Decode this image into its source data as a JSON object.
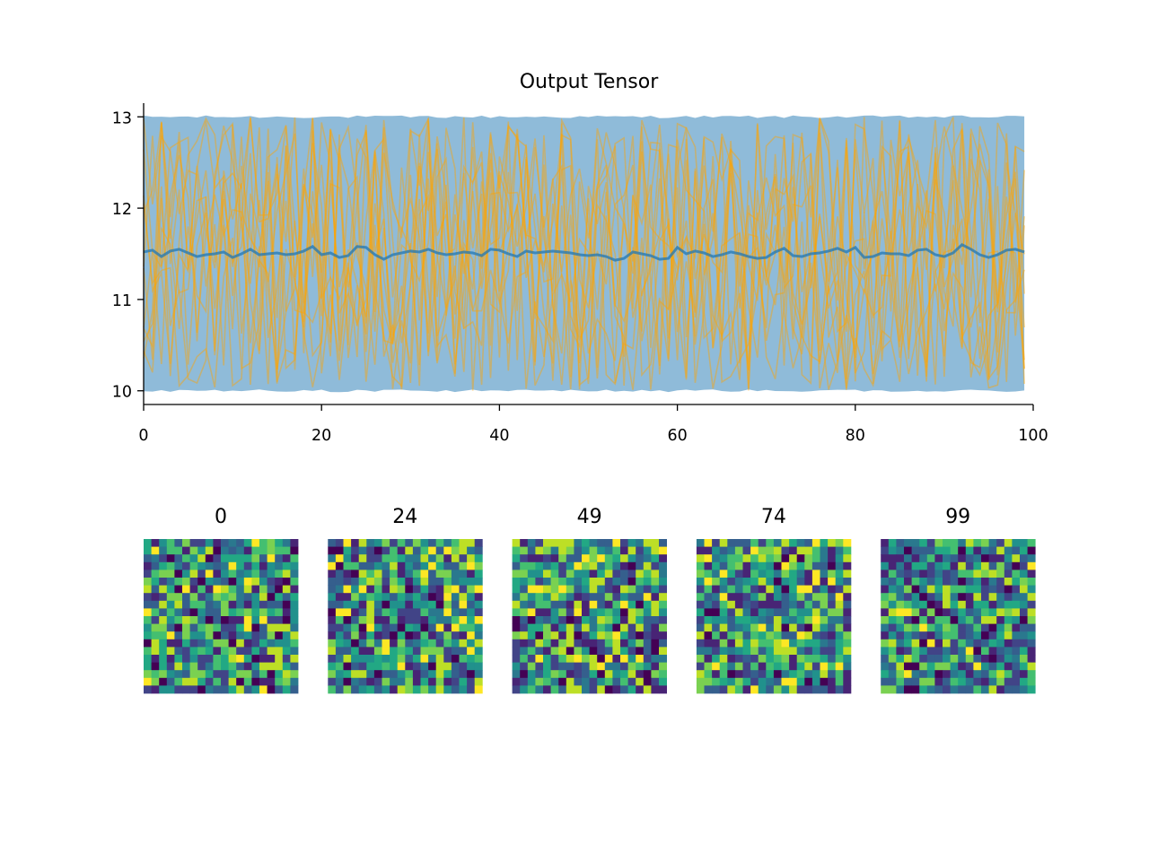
{
  "colors": {
    "band": "#1f77b4",
    "band_alpha": 0.5,
    "samples": "#ffa500",
    "mean_line": "#1f77b4",
    "cmap": "viridis"
  },
  "chart_data": [
    {
      "type": "line",
      "title": "Output Tensor",
      "xlabel": "",
      "ylabel": "",
      "xlim": [
        0,
        100
      ],
      "ylim": [
        9.85,
        13.15
      ],
      "xticks": [
        0,
        20,
        40,
        60,
        80,
        100
      ],
      "xtick_labels": [
        "0",
        "20",
        "40",
        "60",
        "80",
        "100"
      ],
      "yticks": [
        10,
        11,
        12,
        13
      ],
      "ytick_labels": [
        "10",
        "11",
        "12",
        "13"
      ],
      "grid": false,
      "spines": [
        "left",
        "bottom"
      ],
      "x_count": 100,
      "band": {
        "lower": 10.0,
        "upper": 13.0
      },
      "mean_series": [
        11.52,
        11.54,
        11.47,
        11.53,
        11.55,
        11.51,
        11.47,
        11.49,
        11.5,
        11.52,
        11.46,
        11.5,
        11.55,
        11.49,
        11.5,
        11.51,
        11.49,
        11.5,
        11.53,
        11.58,
        11.49,
        11.51,
        11.46,
        11.48,
        11.58,
        11.57,
        11.49,
        11.44,
        11.49,
        11.51,
        11.53,
        11.52,
        11.55,
        11.51,
        11.49,
        11.5,
        11.52,
        11.51,
        11.48,
        11.55,
        11.54,
        11.5,
        11.47,
        11.53,
        11.51,
        11.52,
        11.53,
        11.52,
        11.51,
        11.49,
        11.48,
        11.49,
        11.47,
        11.43,
        11.45,
        11.52,
        11.5,
        11.48,
        11.44,
        11.45,
        11.57,
        11.5,
        11.53,
        11.51,
        11.47,
        11.49,
        11.52,
        11.5,
        11.47,
        11.45,
        11.46,
        11.52,
        11.56,
        11.48,
        11.47,
        11.5,
        11.51,
        11.53,
        11.56,
        11.52,
        11.57,
        11.46,
        11.47,
        11.51,
        11.5,
        11.5,
        11.48,
        11.54,
        11.55,
        11.49,
        11.47,
        11.51,
        11.6,
        11.55,
        11.49,
        11.46,
        11.49,
        11.54,
        11.55,
        11.52
      ],
      "sample_series_count": 12,
      "sample_range": [
        10.0,
        13.0
      ]
    },
    {
      "type": "heatmap",
      "panels": [
        {
          "title": "0",
          "index": 0
        },
        {
          "title": "24",
          "index": 24
        },
        {
          "title": "49",
          "index": 49
        },
        {
          "title": "74",
          "index": 74
        },
        {
          "title": "99",
          "index": 99
        }
      ],
      "grid_size": 20,
      "value_range": [
        10,
        13
      ],
      "colormap": "viridis"
    }
  ]
}
